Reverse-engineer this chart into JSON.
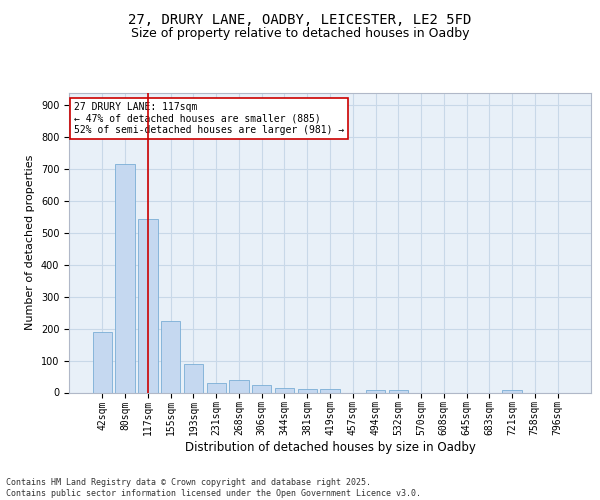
{
  "title_line1": "27, DRURY LANE, OADBY, LEICESTER, LE2 5FD",
  "title_line2": "Size of property relative to detached houses in Oadby",
  "xlabel": "Distribution of detached houses by size in Oadby",
  "ylabel": "Number of detached properties",
  "categories": [
    "42sqm",
    "80sqm",
    "117sqm",
    "155sqm",
    "193sqm",
    "231sqm",
    "268sqm",
    "306sqm",
    "344sqm",
    "381sqm",
    "419sqm",
    "457sqm",
    "494sqm",
    "532sqm",
    "570sqm",
    "608sqm",
    "645sqm",
    "683sqm",
    "721sqm",
    "758sqm",
    "796sqm"
  ],
  "values": [
    190,
    715,
    545,
    225,
    90,
    30,
    40,
    22,
    15,
    10,
    12,
    0,
    8,
    8,
    0,
    0,
    0,
    0,
    8,
    0,
    0
  ],
  "bar_color": "#c5d8f0",
  "bar_edge_color": "#7aaed6",
  "marker_index": 2,
  "marker_color": "#cc0000",
  "annotation_text": "27 DRURY LANE: 117sqm\n← 47% of detached houses are smaller (885)\n52% of semi-detached houses are larger (981) →",
  "annotation_box_color": "#ffffff",
  "annotation_box_edge": "#cc0000",
  "ylim": [
    0,
    940
  ],
  "yticks": [
    0,
    100,
    200,
    300,
    400,
    500,
    600,
    700,
    800,
    900
  ],
  "grid_color": "#c8d8e8",
  "background_color": "#e8f0f8",
  "footer_text": "Contains HM Land Registry data © Crown copyright and database right 2025.\nContains public sector information licensed under the Open Government Licence v3.0.",
  "title_fontsize": 10,
  "subtitle_fontsize": 9,
  "tick_fontsize": 7,
  "ylabel_fontsize": 8,
  "xlabel_fontsize": 8.5,
  "annotation_fontsize": 7,
  "footer_fontsize": 6
}
